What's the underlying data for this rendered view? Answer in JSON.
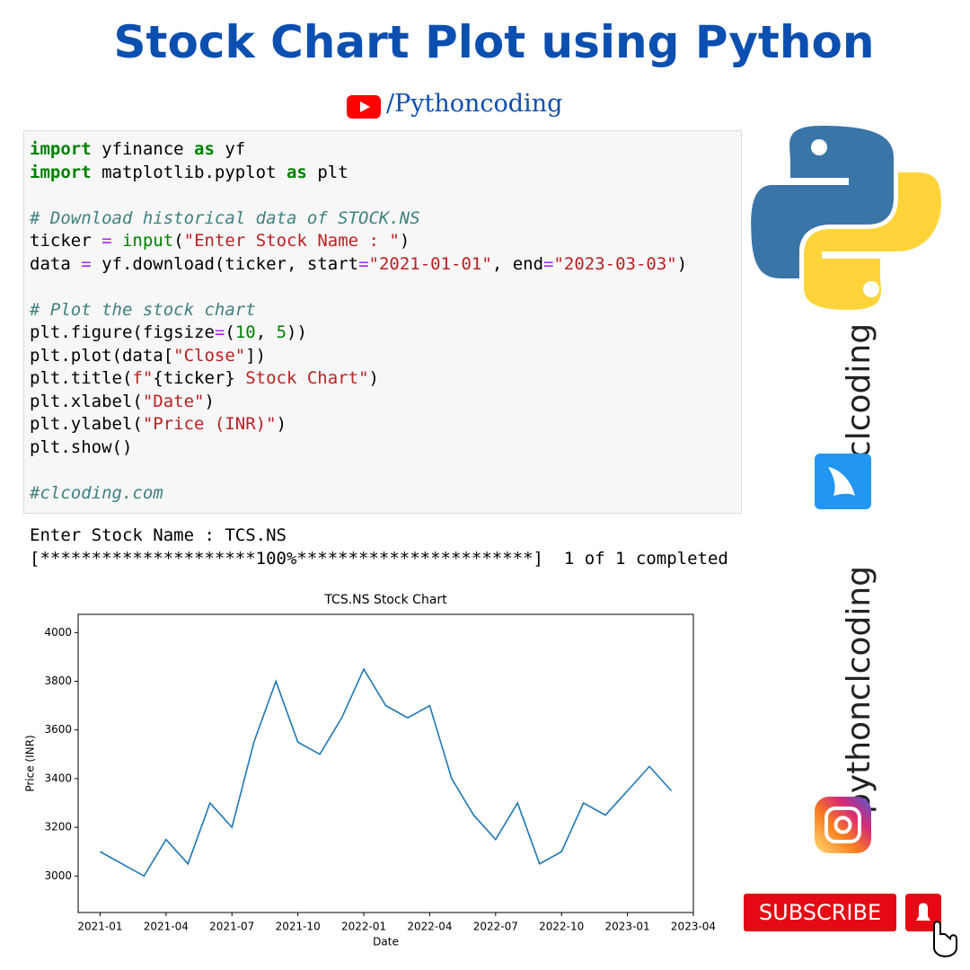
{
  "header": {
    "title": "Stock Chart Plot using Python",
    "channel": "/Pythoncoding"
  },
  "code": {
    "lines": [
      [
        {
          "text": "import",
          "color": "#008000",
          "bold": true
        },
        {
          "text": " yfinance "
        },
        {
          "text": "as",
          "color": "#008000",
          "bold": true
        },
        {
          "text": " yf"
        }
      ],
      [
        {
          "text": "import",
          "color": "#008000",
          "bold": true
        },
        {
          "text": " matplotlib.pyplot "
        },
        {
          "text": "as",
          "color": "#008000",
          "bold": true
        },
        {
          "text": " plt"
        }
      ],
      [],
      [
        {
          "text": "# Download historical data of STOCK.NS",
          "color": "#408080",
          "italic": true
        }
      ],
      [
        {
          "text": "ticker "
        },
        {
          "text": "=",
          "color": "#aa22ff"
        },
        {
          "text": " "
        },
        {
          "text": "input",
          "color": "#008000"
        },
        {
          "text": "("
        },
        {
          "text": "\"Enter Stock Name : \"",
          "color": "#ba2121"
        },
        {
          "text": ")"
        }
      ],
      [
        {
          "text": "data "
        },
        {
          "text": "=",
          "color": "#aa22ff"
        },
        {
          "text": " yf.download(ticker, start"
        },
        {
          "text": "=",
          "color": "#aa22ff"
        },
        {
          "text": "\"2021-01-01\"",
          "color": "#ba2121"
        },
        {
          "text": ", end"
        },
        {
          "text": "=",
          "color": "#aa22ff"
        },
        {
          "text": "\"2023-03-03\"",
          "color": "#ba2121"
        },
        {
          "text": ")"
        }
      ],
      [],
      [
        {
          "text": "# Plot the stock chart",
          "color": "#408080",
          "italic": true
        }
      ],
      [
        {
          "text": "plt.figure(figsize"
        },
        {
          "text": "=",
          "color": "#aa22ff"
        },
        {
          "text": "("
        },
        {
          "text": "10",
          "color": "#008000"
        },
        {
          "text": ", "
        },
        {
          "text": "5",
          "color": "#008000"
        },
        {
          "text": "))"
        }
      ],
      [
        {
          "text": "plt.plot(data["
        },
        {
          "text": "\"Close\"",
          "color": "#ba2121"
        },
        {
          "text": "])"
        }
      ],
      [
        {
          "text": "plt.title("
        },
        {
          "text": "f\"",
          "color": "#ba2121"
        },
        {
          "text": "{ticker}"
        },
        {
          "text": " Stock Chart\"",
          "color": "#ba2121"
        },
        {
          "text": ")"
        }
      ],
      [
        {
          "text": "plt.xlabel("
        },
        {
          "text": "\"Date\"",
          "color": "#ba2121"
        },
        {
          "text": ")"
        }
      ],
      [
        {
          "text": "plt.ylabel("
        },
        {
          "text": "\"Price (INR)\"",
          "color": "#ba2121"
        },
        {
          "text": ")"
        }
      ],
      [
        {
          "text": "plt.show()"
        }
      ],
      [],
      [
        {
          "text": "#clcoding.com",
          "color": "#408080",
          "italic": true
        }
      ]
    ]
  },
  "output": {
    "lines": [
      "Enter Stock Name : TCS.NS",
      "[*********************100%***********************]  1 of 1 completed"
    ]
  },
  "chart_data": {
    "type": "line",
    "title": "TCS.NS Stock Chart",
    "x_label": "Date",
    "y_label": "Price (INR)",
    "x": [
      "2021-01",
      "2021-02",
      "2021-03",
      "2021-04",
      "2021-05",
      "2021-06",
      "2021-07",
      "2021-08",
      "2021-09",
      "2021-10",
      "2021-11",
      "2021-12",
      "2022-01",
      "2022-02",
      "2022-03",
      "2022-04",
      "2022-05",
      "2022-06",
      "2022-07",
      "2022-08",
      "2022-09",
      "2022-10",
      "2022-11",
      "2022-12",
      "2023-01",
      "2023-02",
      "2023-03"
    ],
    "series": [
      {
        "name": "Close",
        "color": "#1f77b4",
        "values": [
          3100,
          3050,
          3000,
          3150,
          3050,
          3300,
          3200,
          3550,
          3800,
          3550,
          3500,
          3650,
          3850,
          3700,
          3650,
          3700,
          3400,
          3250,
          3150,
          3300,
          3050,
          3100,
          3300,
          3250,
          3350,
          3450,
          3350
        ]
      }
    ],
    "xlim": [
      "2020-12",
      "2023-04"
    ],
    "xticks": [
      "2021-01",
      "2021-04",
      "2021-07",
      "2021-10",
      "2022-01",
      "2022-04",
      "2022-07",
      "2022-10",
      "2023-01",
      "2023-04"
    ],
    "ylim": [
      2850,
      4075
    ],
    "yticks": [
      3000,
      3200,
      3400,
      3600,
      3800,
      4000
    ],
    "grid": false
  },
  "sidebar": {
    "brand": "clcoding",
    "handle": "pythonclcoding"
  },
  "subscribe": {
    "label": "SUBSCRIBE"
  }
}
